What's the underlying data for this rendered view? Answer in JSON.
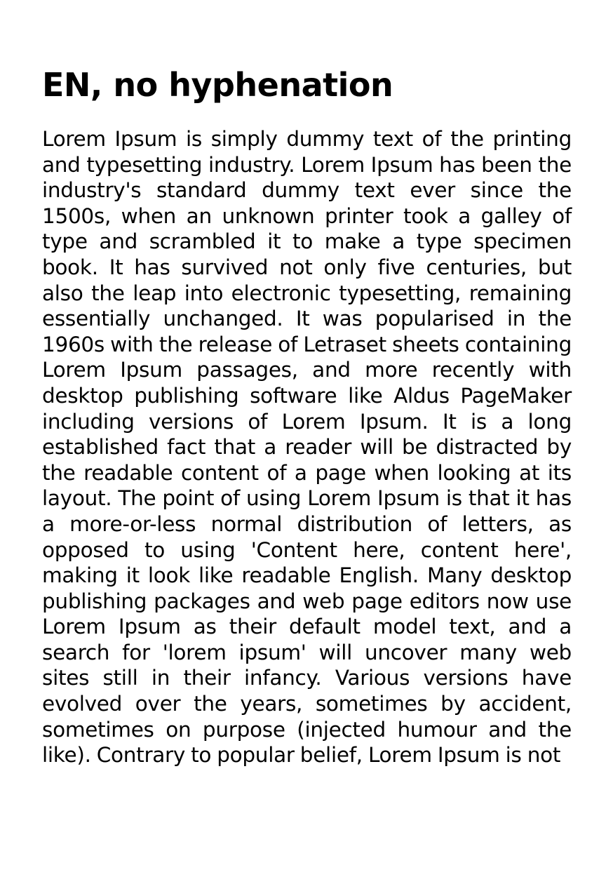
{
  "document": {
    "title": "EN, no hyphenation",
    "body": "Lorem Ipsum is simply dummy text of the printing and typesetting industry. Lorem Ipsum has been the industry's standard dummy text ever since the 1500s, when an unknown printer took a galley of type and scrambled it to make a type specimen book. It has survived not only five centuries, but also the leap into electronic typesetting, remaining essentially unchanged. It was popularised in the 1960s with the release of Letraset sheets containing Lorem Ipsum passages, and more recently with desktop publishing software like Aldus PageMaker including versions of Lorem Ipsum. It is a long established fact that a reader will be distracted by the readable content of a page when looking at its layout. The point of using Lorem Ipsum is that it has a more-or-less normal distribution of letters, as opposed to using 'Content here, content here', making it look like readable English. Many desktop publishing packages and web page editors now use Lorem Ipsum as their default model text, and a search for 'lorem ipsum' will uncover many web sites still in their infancy. Various versions have evolved over the years, sometimes by accident, sometimes on purpose (injected humour and the like). Contrary to popular belief, Lorem Ipsum is not"
  },
  "colors": {
    "text": "#000000",
    "background": "#ffffff"
  }
}
